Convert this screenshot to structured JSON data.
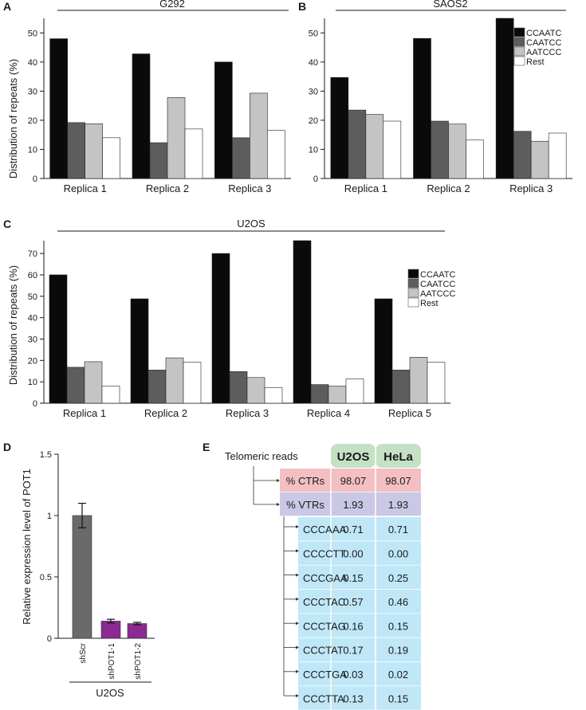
{
  "panel_letters": {
    "A": "A",
    "B": "B",
    "C": "C",
    "D": "D",
    "E": "E"
  },
  "legend_entries": [
    {
      "label": "CCAATC",
      "color": "#0a0a0a"
    },
    {
      "label": "CAATCC",
      "color": "#5d5d5d"
    },
    {
      "label": "AATCCC",
      "color": "#c4c4c4"
    },
    {
      "label": "Rest",
      "color": "#ffffff"
    }
  ],
  "colors": {
    "shScr": "#6a6a6c",
    "shPOT": "#8b2a92",
    "header_green": "#c5e1c5",
    "ctr_row": "#f4bfc3",
    "vtr_row": "#cac8e4",
    "motif_row": "#bfe7f7"
  },
  "chart_data": [
    {
      "id": "A",
      "type": "bar",
      "title": "G292",
      "ylabel": "Distribution of repeats (%)",
      "xlabel": "",
      "ylim": [
        0,
        55
      ],
      "yticks": [
        0,
        10,
        20,
        30,
        40,
        50
      ],
      "categories": [
        "Replica 1",
        "Replica 2",
        "Replica 3"
      ],
      "series": [
        {
          "name": "CCAATC",
          "values": [
            48.0,
            42.8,
            40.0
          ]
        },
        {
          "name": "CAATCC",
          "values": [
            19.2,
            12.3,
            14.0
          ]
        },
        {
          "name": "AATCCC",
          "values": [
            18.8,
            27.8,
            29.3
          ]
        },
        {
          "name": "Rest",
          "values": [
            14.0,
            17.0,
            16.5
          ]
        }
      ]
    },
    {
      "id": "B",
      "type": "bar",
      "title": "SAOS2",
      "ylabel": "",
      "xlabel": "",
      "ylim": [
        0,
        55
      ],
      "yticks": [
        0,
        10,
        20,
        30,
        40,
        50
      ],
      "legend": "top-right",
      "categories": [
        "Replica 1",
        "Replica 2",
        "Replica 3"
      ],
      "series": [
        {
          "name": "CCAATC",
          "values": [
            34.7,
            48.1,
            55.0
          ]
        },
        {
          "name": "CAATCC",
          "values": [
            23.5,
            19.7,
            16.2
          ]
        },
        {
          "name": "AATCCC",
          "values": [
            22.0,
            18.7,
            12.8
          ]
        },
        {
          "name": "Rest",
          "values": [
            19.7,
            13.2,
            15.6
          ]
        }
      ]
    },
    {
      "id": "C",
      "type": "bar",
      "title": "U2OS",
      "ylabel": "Distribution of repeats (%)",
      "xlabel": "",
      "ylim": [
        0,
        76
      ],
      "yticks": [
        0,
        10,
        20,
        30,
        40,
        50,
        60,
        70
      ],
      "legend": "right",
      "categories": [
        "Replica 1",
        "Replica 2",
        "Replica 3",
        "Replica 4",
        "Replica 5"
      ],
      "series": [
        {
          "name": "CCAATC",
          "values": [
            60.0,
            48.8,
            70.0,
            76.0,
            48.8
          ]
        },
        {
          "name": "CAATCC",
          "values": [
            16.8,
            15.5,
            14.8,
            8.7,
            15.5
          ]
        },
        {
          "name": "AATCCC",
          "values": [
            19.4,
            21.2,
            12.0,
            8.0,
            21.5
          ]
        },
        {
          "name": "Rest",
          "values": [
            8.0,
            19.2,
            7.3,
            11.4,
            19.2
          ]
        }
      ]
    },
    {
      "id": "D",
      "type": "bar",
      "title": "",
      "ylabel": "Relative expression level of POT1",
      "xlabel": "U2OS",
      "ylim": [
        0,
        1.5
      ],
      "yticks": [
        0,
        0.5,
        1,
        1.5
      ],
      "ytick_labels": [
        "0",
        "0.5",
        "1",
        "1.5"
      ],
      "categories": [
        "shScr",
        "shPOT1-1",
        "shPOT1-2"
      ],
      "values": [
        1.0,
        0.14,
        0.12
      ],
      "errors": [
        0.1,
        0.015,
        0.01
      ]
    },
    {
      "id": "E",
      "type": "table",
      "root_label": "Telomeric reads",
      "columns": [
        "",
        "U2OS",
        "HeLa"
      ],
      "summary_rows": [
        {
          "label": "% CTRs",
          "values": [
            "98.07",
            "98.07"
          ],
          "kind": "ctr"
        },
        {
          "label": "% VTRs",
          "values": [
            "1.93",
            "1.93"
          ],
          "kind": "vtr"
        }
      ],
      "motif_rows": [
        {
          "label": "CCCAAA",
          "values": [
            "0.71",
            "0.71"
          ]
        },
        {
          "label": "CCCCTT",
          "values": [
            "0.00",
            "0.00"
          ]
        },
        {
          "label": "CCCGAA",
          "values": [
            "0.15",
            "0.25"
          ]
        },
        {
          "label": "CCCTAC",
          "values": [
            "0.57",
            "0.46"
          ]
        },
        {
          "label": "CCCTAG",
          "values": [
            "0.16",
            "0.15"
          ]
        },
        {
          "label": "CCCTAT",
          "values": [
            "0.17",
            "0.19"
          ]
        },
        {
          "label": "CCCTGA",
          "values": [
            "0.03",
            "0.02"
          ]
        },
        {
          "label": "CCCTTA",
          "values": [
            "0.13",
            "0.15"
          ]
        }
      ]
    }
  ]
}
